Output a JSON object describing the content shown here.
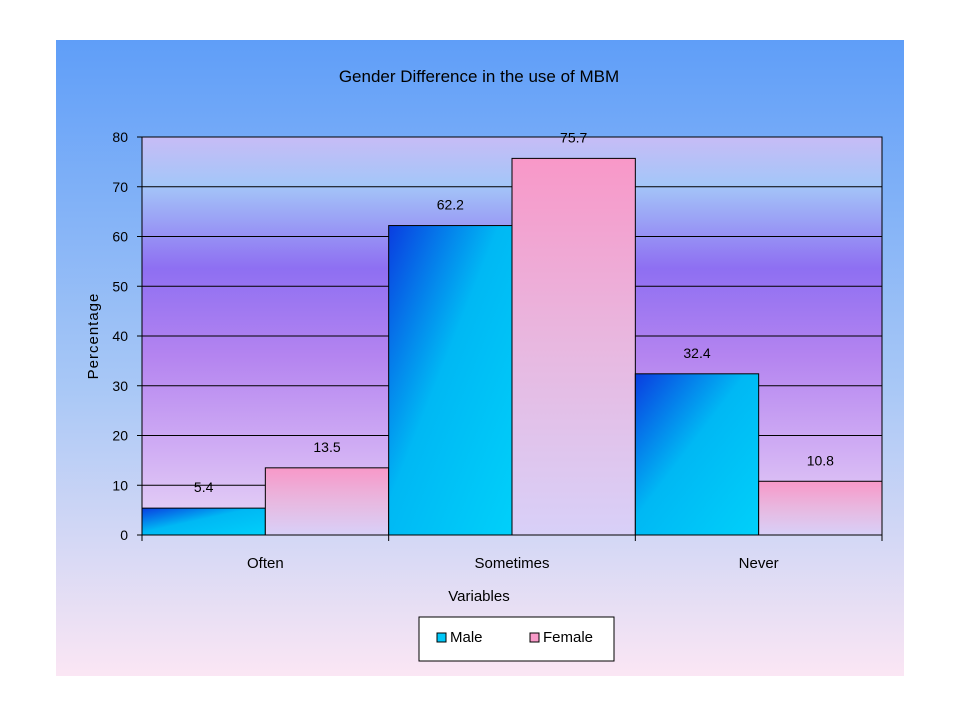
{
  "chart_data": {
    "type": "bar",
    "title": "Gender Difference in the use of MBM",
    "xlabel": "Variables",
    "ylabel": "Percentage",
    "categories": [
      "Often",
      "Sometimes",
      "Never"
    ],
    "series": [
      {
        "name": "Male",
        "values": [
          5.4,
          62.2,
          32.4
        ],
        "labels": [
          "5.4",
          "62.2",
          "32.4"
        ],
        "color": "#00c8f8"
      },
      {
        "name": "Female",
        "values": [
          13.5,
          75.7,
          10.8
        ],
        "labels": [
          "13.5",
          "75.7",
          "10.8"
        ],
        "color": "#f89ac8"
      }
    ],
    "ylim": [
      0,
      80
    ],
    "yticks": [
      "0",
      "10",
      "20",
      "30",
      "40",
      "50",
      "60",
      "70",
      "80"
    ],
    "grid": true,
    "legend_position": "bottom"
  },
  "colors": {
    "background_top": "#5f9ef8",
    "background_bottom": "#fbe6f4",
    "plot_top": "#c6b8f6",
    "plot_mid": "#8a6ef0",
    "male_dark": "#0a3de0",
    "male_light": "#00c8f8",
    "female_top": "#f89ac8",
    "female_bottom": "#d8d0f8"
  }
}
